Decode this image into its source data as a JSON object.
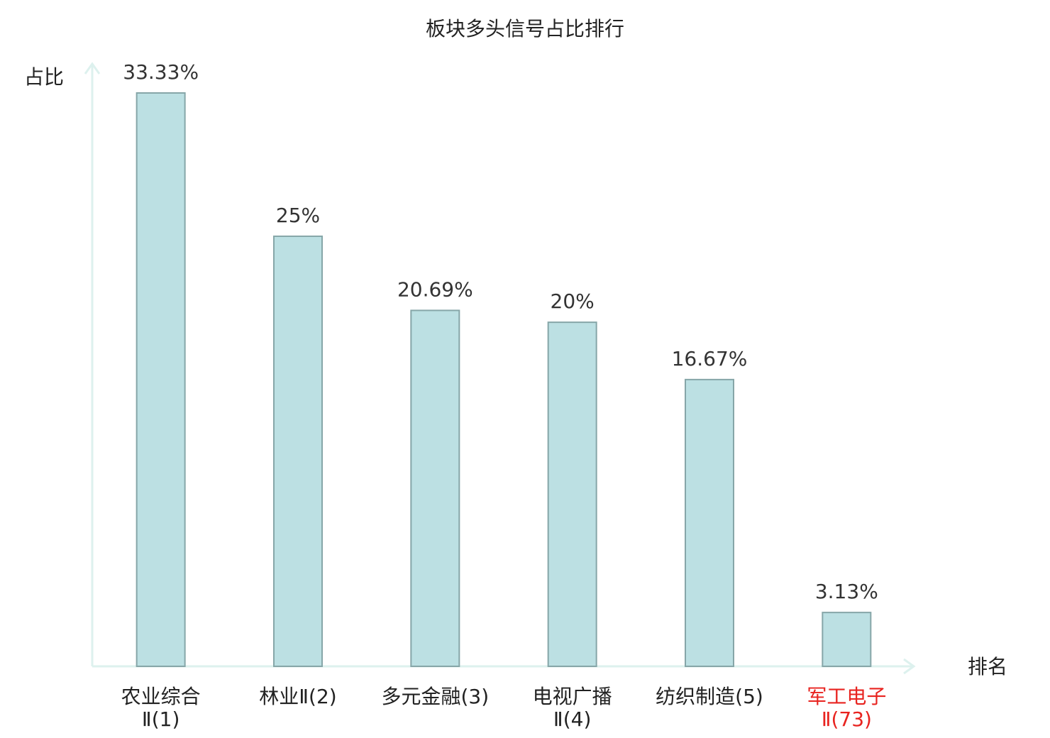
{
  "chart_data": {
    "type": "bar",
    "title": "板块多头信号占比排行",
    "y_label": "占比",
    "x_label": "排名",
    "categories": [
      "农业综合\nⅡ(1)",
      "林业Ⅱ(2)",
      "多元金融(3)",
      "电视广播\nⅡ(4)",
      "纺织制造(5)",
      "军工电子\nⅡ(73)"
    ],
    "category_colors": [
      "#222222",
      "#222222",
      "#222222",
      "#222222",
      "#222222",
      "#e8231f"
    ],
    "values": [
      33.33,
      25,
      20.69,
      20,
      16.67,
      3.13
    ],
    "value_labels": [
      "33.33%",
      "25%",
      "20.69%",
      "20%",
      "16.67%",
      "3.13%"
    ],
    "color": "#bce0e3",
    "edge_color": "#86a6a8",
    "ylim": [
      0,
      33.33
    ]
  }
}
